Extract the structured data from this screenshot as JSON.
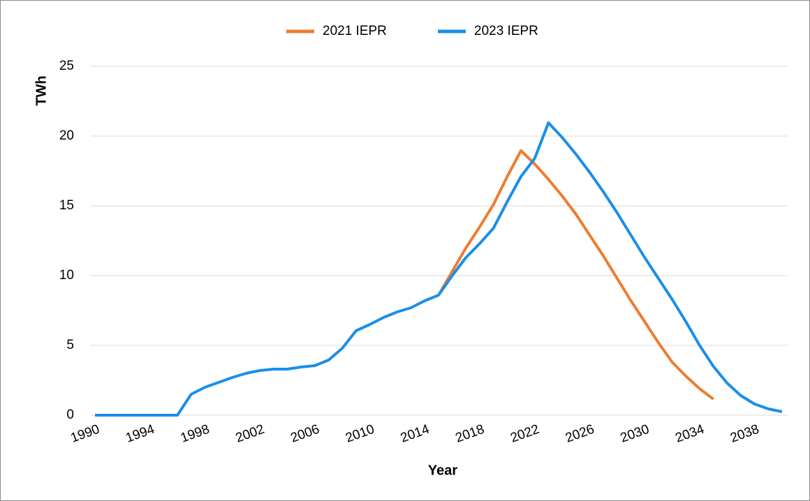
{
  "chart_data": {
    "type": "line",
    "x_label": "Year",
    "y_label": "TWh",
    "x": [
      1990,
      1991,
      1992,
      1993,
      1994,
      1995,
      1996,
      1997,
      1998,
      1999,
      2000,
      2001,
      2002,
      2003,
      2004,
      2005,
      2006,
      2007,
      2008,
      2009,
      2010,
      2011,
      2012,
      2013,
      2014,
      2015,
      2016,
      2017,
      2018,
      2019,
      2020,
      2021,
      2022,
      2023,
      2024,
      2025,
      2026,
      2027,
      2028,
      2029,
      2030,
      2031,
      2032,
      2033,
      2034,
      2035,
      2036,
      2037,
      2038,
      2039,
      2040
    ],
    "series": [
      {
        "name": "2021 IEPR",
        "color": "#ed7d31",
        "values": [
          null,
          null,
          null,
          null,
          null,
          null,
          null,
          null,
          null,
          null,
          null,
          null,
          null,
          null,
          null,
          null,
          null,
          null,
          null,
          null,
          null,
          null,
          null,
          null,
          null,
          8.6,
          10.3,
          12.0,
          13.5,
          15.1,
          17.1,
          18.95,
          18.0,
          16.9,
          15.7,
          14.4,
          12.9,
          11.4,
          9.8,
          8.2,
          6.7,
          5.2,
          3.8,
          2.8,
          1.9,
          1.15,
          null,
          null,
          null,
          null,
          null
        ]
      },
      {
        "name": "2023 IEPR",
        "color": "#1a8fe8",
        "values": [
          0,
          0,
          0,
          0,
          0,
          0,
          0,
          1.5,
          2.0,
          2.35,
          2.7,
          3.0,
          3.2,
          3.3,
          3.3,
          3.45,
          3.55,
          3.95,
          4.8,
          6.05,
          6.5,
          7.0,
          7.4,
          7.7,
          8.2,
          8.6,
          10.0,
          11.3,
          12.3,
          13.4,
          15.3,
          17.1,
          18.4,
          20.95,
          19.9,
          18.7,
          17.4,
          16.0,
          14.5,
          12.9,
          11.3,
          9.8,
          8.3,
          6.7,
          5.0,
          3.5,
          2.3,
          1.4,
          0.8,
          0.45,
          0.25
        ]
      }
    ],
    "xlim": [
      1990,
      2040
    ],
    "xticks": [
      1990,
      1994,
      1998,
      2002,
      2006,
      2010,
      2014,
      2018,
      2022,
      2026,
      2030,
      2034,
      2038
    ],
    "ylim": [
      0,
      25
    ],
    "yticks": [
      0,
      5,
      10,
      15,
      20,
      25
    ],
    "grid": true,
    "legend": "top"
  }
}
